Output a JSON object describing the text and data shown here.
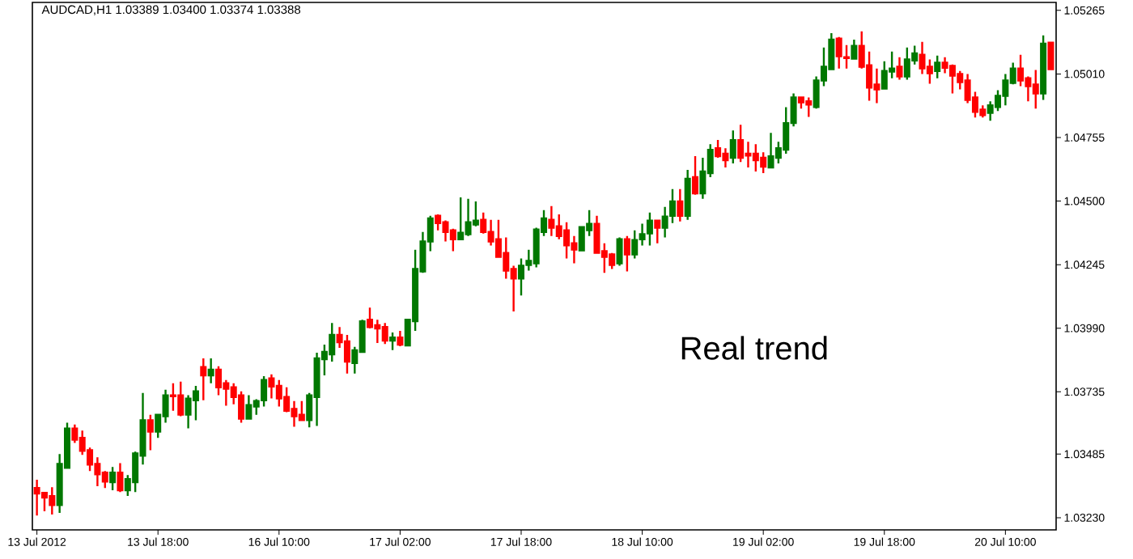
{
  "chart_data": {
    "type": "candlestick",
    "title": "AUDCAD,H1  1.03389 1.03400 1.03374 1.03388",
    "annotations": [
      "Real trend"
    ],
    "categories": [
      "13 Jul 2012",
      null,
      null,
      null,
      null,
      null,
      null,
      null,
      null,
      null,
      null,
      null,
      null,
      null,
      null,
      null,
      "13 Jul 18:00",
      null,
      null,
      null,
      null,
      null,
      null,
      null,
      null,
      null,
      null,
      null,
      null,
      null,
      null,
      null,
      "16 Jul 10:00",
      null,
      null,
      null,
      null,
      null,
      null,
      null,
      null,
      null,
      null,
      null,
      null,
      null,
      null,
      null,
      "17 Jul 02:00",
      null,
      null,
      null,
      null,
      null,
      null,
      null,
      null,
      null,
      null,
      null,
      null,
      null,
      null,
      null,
      "17 Jul 18:00",
      null,
      null,
      null,
      null,
      null,
      null,
      null,
      null,
      null,
      null,
      null,
      null,
      null,
      null,
      null,
      "18 Jul 10:00",
      null,
      null,
      null,
      null,
      null,
      null,
      null,
      null,
      null,
      null,
      null,
      null,
      null,
      null,
      null,
      "19 Jul 02:00",
      null,
      null,
      null,
      null,
      null,
      null,
      null,
      null,
      null,
      null,
      null,
      null,
      null,
      null,
      null,
      "19 Jul 18:00",
      null,
      null,
      null,
      null,
      null,
      null,
      null,
      null,
      null,
      null,
      null,
      null,
      null,
      null,
      null,
      "20 Jul 10:00",
      null,
      null,
      null,
      null,
      null,
      null
    ],
    "ohlc": [
      [
        1.03349,
        1.03382,
        1.03239,
        1.03327
      ],
      [
        1.0333,
        1.0333,
        1.03256,
        1.03311
      ],
      [
        1.03317,
        1.03352,
        1.03243,
        1.03281
      ],
      [
        1.03281,
        1.03485,
        1.03249,
        1.03446
      ],
      [
        1.0343,
        1.03611,
        1.03427,
        1.03588
      ],
      [
        1.03588,
        1.03604,
        1.0353,
        1.03543
      ],
      [
        1.0355,
        1.03579,
        1.03482,
        1.03498
      ],
      [
        1.03501,
        1.03511,
        1.03417,
        1.03443
      ],
      [
        1.03446,
        1.03472,
        1.03356,
        1.03404
      ],
      [
        1.03411,
        1.03417,
        1.03349,
        1.03375
      ],
      [
        1.03372,
        1.03433,
        1.0334,
        1.03411
      ],
      [
        1.03411,
        1.03449,
        1.03333,
        1.0334
      ],
      [
        1.0334,
        1.03401,
        1.03317,
        1.03385
      ],
      [
        1.03372,
        1.03495,
        1.03333,
        1.03488
      ],
      [
        1.03479,
        1.0373,
        1.03443,
        1.03621
      ],
      [
        1.03621,
        1.03643,
        1.03501,
        1.03575
      ],
      [
        1.03575,
        1.03643,
        1.0355,
        1.03643
      ],
      [
        1.03637,
        1.03743,
        1.03611,
        1.03721
      ],
      [
        1.03721,
        1.03769,
        1.03659,
        1.03717
      ],
      [
        1.03721,
        1.03776,
        1.03637,
        1.03643
      ],
      [
        1.03643,
        1.03721,
        1.03588,
        1.03708
      ],
      [
        1.03701,
        1.03759,
        1.03621,
        1.03737
      ],
      [
        1.03834,
        1.03869,
        1.03701,
        1.03801
      ],
      [
        1.03801,
        1.03869,
        1.03769,
        1.03824
      ],
      [
        1.03824,
        1.03837,
        1.03721,
        1.03753
      ],
      [
        1.03769,
        1.03782,
        1.03679,
        1.03747
      ],
      [
        1.03753,
        1.03769,
        1.03685,
        1.03714
      ],
      [
        1.03721,
        1.03737,
        1.03611,
        1.03627
      ],
      [
        1.03627,
        1.03721,
        1.03627,
        1.03682
      ],
      [
        1.03676,
        1.03705,
        1.03643,
        1.03698
      ],
      [
        1.03701,
        1.03798,
        1.03676,
        1.03782
      ],
      [
        1.03789,
        1.03805,
        1.03708,
        1.03756
      ],
      [
        1.03759,
        1.03782,
        1.03676,
        1.03708
      ],
      [
        1.03714,
        1.03753,
        1.03653,
        1.03659
      ],
      [
        1.03666,
        1.03698,
        1.03595,
        1.03637
      ],
      [
        1.03643,
        1.03698,
        1.03621,
        1.03621
      ],
      [
        1.03621,
        1.0373,
        1.03592,
        1.03721
      ],
      [
        1.03714,
        1.03892,
        1.03598,
        1.03869
      ],
      [
        1.03866,
        1.03924,
        1.03801,
        1.03895
      ],
      [
        1.03885,
        1.04011,
        1.03856,
        1.03963
      ],
      [
        1.03963,
        1.03995,
        1.03911,
        1.03934
      ],
      [
        1.03937,
        1.03963,
        1.03808,
        1.03856
      ],
      [
        1.0385,
        1.03915,
        1.03808,
        1.03902
      ],
      [
        1.03895,
        1.04024,
        1.03895,
        1.04018
      ],
      [
        1.04024,
        1.04073,
        1.03989,
        1.03995
      ],
      [
        1.04002,
        1.04024,
        1.03931,
        1.03989
      ],
      [
        1.03995,
        1.04011,
        1.03927,
        1.0394
      ],
      [
        1.0394,
        1.03973,
        1.03902,
        1.03953
      ],
      [
        1.03953,
        1.03979,
        1.03918,
        1.03924
      ],
      [
        1.03921,
        1.04024,
        1.03918,
        1.04024
      ],
      [
        1.04018,
        1.04305,
        1.03979,
        1.04228
      ],
      [
        1.04218,
        1.04376,
        1.04212,
        1.04338
      ],
      [
        1.04338,
        1.04441,
        1.04299,
        1.04431
      ],
      [
        1.04441,
        1.04447,
        1.04383,
        1.04412
      ],
      [
        1.04415,
        1.04422,
        1.04338,
        1.04376
      ],
      [
        1.04383,
        1.04389,
        1.04299,
        1.04347
      ],
      [
        1.04347,
        1.04515,
        1.04347,
        1.04373
      ],
      [
        1.04367,
        1.04509,
        1.0436,
        1.04415
      ],
      [
        1.04406,
        1.04499,
        1.04399,
        1.04422
      ],
      [
        1.04425,
        1.04454,
        1.0437,
        1.04376
      ],
      [
        1.04376,
        1.04425,
        1.04322,
        1.04338
      ],
      [
        1.04347,
        1.04425,
        1.04276,
        1.04276
      ],
      [
        1.04292,
        1.04354,
        1.04189,
        1.04221
      ],
      [
        1.04228,
        1.04241,
        1.04057,
        1.04189
      ],
      [
        1.04189,
        1.0427,
        1.04121,
        1.04241
      ],
      [
        1.04244,
        1.04305,
        1.04221,
        1.0426
      ],
      [
        1.0425,
        1.04393,
        1.04234,
        1.04386
      ],
      [
        1.04376,
        1.04464,
        1.0436,
        1.04431
      ],
      [
        1.04425,
        1.0448,
        1.0436,
        1.04393
      ],
      [
        1.04399,
        1.04447,
        1.04347,
        1.0436
      ],
      [
        1.04383,
        1.04415,
        1.0427,
        1.04322
      ],
      [
        1.04331,
        1.0436,
        1.0425,
        1.04305
      ],
      [
        1.04302,
        1.04399,
        1.04299,
        1.04396
      ],
      [
        1.04383,
        1.04464,
        1.0436,
        1.04409
      ],
      [
        1.04409,
        1.04441,
        1.04292,
        1.04292
      ],
      [
        1.04299,
        1.04331,
        1.04212,
        1.04276
      ],
      [
        1.04286,
        1.04292,
        1.04228,
        1.04244
      ],
      [
        1.0425,
        1.04354,
        1.04241,
        1.04347
      ],
      [
        1.04347,
        1.0436,
        1.04218,
        1.04286
      ],
      [
        1.04286,
        1.04383,
        1.0427,
        1.04344
      ],
      [
        1.04347,
        1.04409,
        1.04322,
        1.04367
      ],
      [
        1.0437,
        1.04454,
        1.04322,
        1.04422
      ],
      [
        1.04422,
        1.04422,
        1.04331,
        1.04393
      ],
      [
        1.04393,
        1.04477,
        1.04354,
        1.04438
      ],
      [
        1.04441,
        1.04548,
        1.04412,
        1.04499
      ],
      [
        1.04499,
        1.04548,
        1.04418,
        1.04441
      ],
      [
        1.04441,
        1.04625,
        1.04425,
        1.0459
      ],
      [
        1.04596,
        1.0468,
        1.04525,
        1.04531
      ],
      [
        1.04531,
        1.04674,
        1.04509,
        1.04619
      ],
      [
        1.04612,
        1.04728,
        1.04596,
        1.04706
      ],
      [
        1.04712,
        1.04745,
        1.04674,
        1.0468
      ],
      [
        1.0469,
        1.04712,
        1.04635,
        1.04664
      ],
      [
        1.04674,
        1.04783,
        1.04651,
        1.04745
      ],
      [
        1.04745,
        1.04806,
        1.04657,
        1.04674
      ],
      [
        1.0469,
        1.04738,
        1.04635,
        1.04683
      ],
      [
        1.0469,
        1.04728,
        1.04619,
        1.04664
      ],
      [
        1.04674,
        1.04696,
        1.04612,
        1.04638
      ],
      [
        1.04635,
        1.04774,
        1.04635,
        1.0468
      ],
      [
        1.04674,
        1.04738,
        1.04651,
        1.04712
      ],
      [
        1.04706,
        1.04877,
        1.0469,
        1.04813
      ],
      [
        1.04813,
        1.04932,
        1.048,
        1.04916
      ],
      [
        1.04916,
        1.04916,
        1.04871,
        1.04896
      ],
      [
        1.049,
        1.04916,
        1.04838,
        1.04887
      ],
      [
        1.04877,
        1.05,
        1.04871,
        1.04984
      ],
      [
        1.04984,
        1.05116,
        1.04961,
        1.05039
      ],
      [
        1.05029,
        1.05174,
        1.05026,
        1.05148
      ],
      [
        1.05152,
        1.05158,
        1.05032,
        1.05081
      ],
      [
        1.05077,
        1.05126,
        1.05032,
        1.05074
      ],
      [
        1.05071,
        1.05148,
        1.05071,
        1.05123
      ],
      [
        1.05123,
        1.05181,
        1.05032,
        1.05039
      ],
      [
        1.05045,
        1.051,
        1.04903,
        1.04955
      ],
      [
        1.04968,
        1.05032,
        1.04893,
        1.04948
      ],
      [
        1.04951,
        1.05061,
        1.04948,
        1.05022
      ],
      [
        1.05019,
        1.051,
        1.04993,
        1.05032
      ],
      [
        1.05039,
        1.05077,
        1.04987,
        1.05
      ],
      [
        1.05,
        1.05116,
        1.04987,
        1.05068
      ],
      [
        1.05064,
        1.05123,
        1.05048,
        1.05093
      ],
      [
        1.05087,
        1.05139,
        1.0501,
        1.05032
      ],
      [
        1.05039,
        1.05068,
        1.04971,
        1.05013
      ],
      [
        1.05022,
        1.05084,
        1.04993,
        1.05055
      ],
      [
        1.05055,
        1.05077,
        1.05013,
        1.05035
      ],
      [
        1.05042,
        1.05048,
        1.04932,
        1.05003
      ],
      [
        1.0501,
        1.05022,
        1.04948,
        1.04977
      ],
      [
        1.04984,
        1.0501,
        1.04893,
        1.04906
      ],
      [
        1.04916,
        1.04938,
        1.04835,
        1.04858
      ],
      [
        1.04867,
        1.04884,
        1.04835,
        1.04845
      ],
      [
        1.04854,
        1.049,
        1.04822,
        1.04884
      ],
      [
        1.04877,
        1.04945,
        1.04861,
        1.04922
      ],
      [
        1.04922,
        1.0501,
        1.04884,
        1.04984
      ],
      [
        1.04974,
        1.05055,
        1.04968,
        1.05032
      ],
      [
        1.05032,
        1.05087,
        1.04961,
        1.04984
      ],
      [
        1.04993,
        1.05,
        1.049,
        1.04961
      ],
      [
        1.04968,
        1.05026,
        1.04871,
        1.04932
      ],
      [
        1.04932,
        1.05165,
        1.04906,
        1.05132
      ],
      [
        1.05136,
        1.05136,
        1.05029,
        1.05029
      ]
    ],
    "colors": [
      "#ff0000",
      "#ff0000",
      "#ff0000",
      "#007800",
      "#007800",
      "#ff0000",
      "#ff0000",
      "#ff0000",
      "#ff0000",
      "#ff0000",
      "#007800",
      "#ff0000",
      "#007800",
      "#007800",
      "#007800",
      "#ff0000",
      "#007800",
      "#007800",
      "#ff0000",
      "#ff0000",
      "#007800",
      "#007800",
      "#ff0000",
      "#007800",
      "#ff0000",
      "#ff0000",
      "#ff0000",
      "#ff0000",
      "#007800",
      "#007800",
      "#007800",
      "#ff0000",
      "#ff0000",
      "#ff0000",
      "#ff0000",
      "#ff0000",
      "#007800",
      "#007800",
      "#007800",
      "#007800",
      "#ff0000",
      "#ff0000",
      "#007800",
      "#007800",
      "#ff0000",
      "#ff0000",
      "#ff0000",
      "#007800",
      "#ff0000",
      "#007800",
      "#007800",
      "#007800",
      "#007800",
      "#ff0000",
      "#ff0000",
      "#ff0000",
      "#007800",
      "#007800",
      "#007800",
      "#ff0000",
      "#ff0000",
      "#ff0000",
      "#ff0000",
      "#ff0000",
      "#007800",
      "#007800",
      "#007800",
      "#007800",
      "#ff0000",
      "#ff0000",
      "#ff0000",
      "#ff0000",
      "#007800",
      "#007800",
      "#ff0000",
      "#ff0000",
      "#ff0000",
      "#007800",
      "#ff0000",
      "#007800",
      "#007800",
      "#007800",
      "#ff0000",
      "#007800",
      "#007800",
      "#ff0000",
      "#007800",
      "#ff0000",
      "#007800",
      "#007800",
      "#ff0000",
      "#ff0000",
      "#007800",
      "#ff0000",
      "#ff0000",
      "#ff0000",
      "#ff0000",
      "#007800",
      "#007800",
      "#007800",
      "#007800",
      "#ff0000",
      "#ff0000",
      "#007800",
      "#007800",
      "#007800",
      "#ff0000",
      "#ff0000",
      "#007800",
      "#ff0000",
      "#ff0000",
      "#ff0000",
      "#007800",
      "#007800",
      "#ff0000",
      "#007800",
      "#007800",
      "#ff0000",
      "#ff0000",
      "#007800",
      "#ff0000",
      "#ff0000",
      "#ff0000",
      "#ff0000",
      "#ff0000",
      "#ff0000",
      "#007800",
      "#007800",
      "#007800",
      "#007800",
      "#ff0000",
      "#ff0000",
      "#ff0000",
      "#007800",
      "#ff0000"
    ],
    "ylim": [
      1.03181,
      1.05297
    ],
    "yticks": [
      {
        "value": 1.0323,
        "label": "1.03230"
      },
      1.03485,
      1.03735,
      {
        "value": 1.0399,
        "label": "1.03990"
      },
      1.04245,
      {
        "value": 1.045,
        "label": "1.04500"
      },
      1.04755,
      {
        "value": 1.0501,
        "label": "1.05010"
      },
      1.05265
    ]
  }
}
